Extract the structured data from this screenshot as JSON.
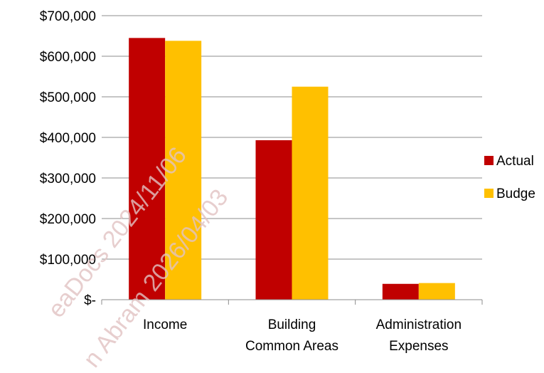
{
  "chart_data": {
    "type": "bar",
    "categories": [
      [
        "Income"
      ],
      [
        "Building",
        "Common Areas"
      ],
      [
        "Administration",
        "Expenses"
      ]
    ],
    "series": [
      {
        "name": "Actual",
        "color": "#C00000",
        "values": [
          645000,
          393000,
          39000
        ]
      },
      {
        "name": "Budge",
        "color": "#FFC000",
        "values": [
          638000,
          525000,
          41000
        ]
      }
    ],
    "ylim": [
      0,
      700000
    ],
    "yticks": [
      0,
      100000,
      200000,
      300000,
      400000,
      500000,
      600000,
      700000
    ],
    "ytick_labels": [
      "$-",
      "$100,000",
      "$200,000",
      "$300,000",
      "$400,000",
      "$500,000",
      "$600,000",
      "$700,000"
    ],
    "grid": true,
    "legend_position": "right",
    "title": "",
    "xlabel": "",
    "ylabel": ""
  },
  "watermarks": [
    "eaDocs 2024/11/06",
    "n Abram 2026/04/03"
  ]
}
